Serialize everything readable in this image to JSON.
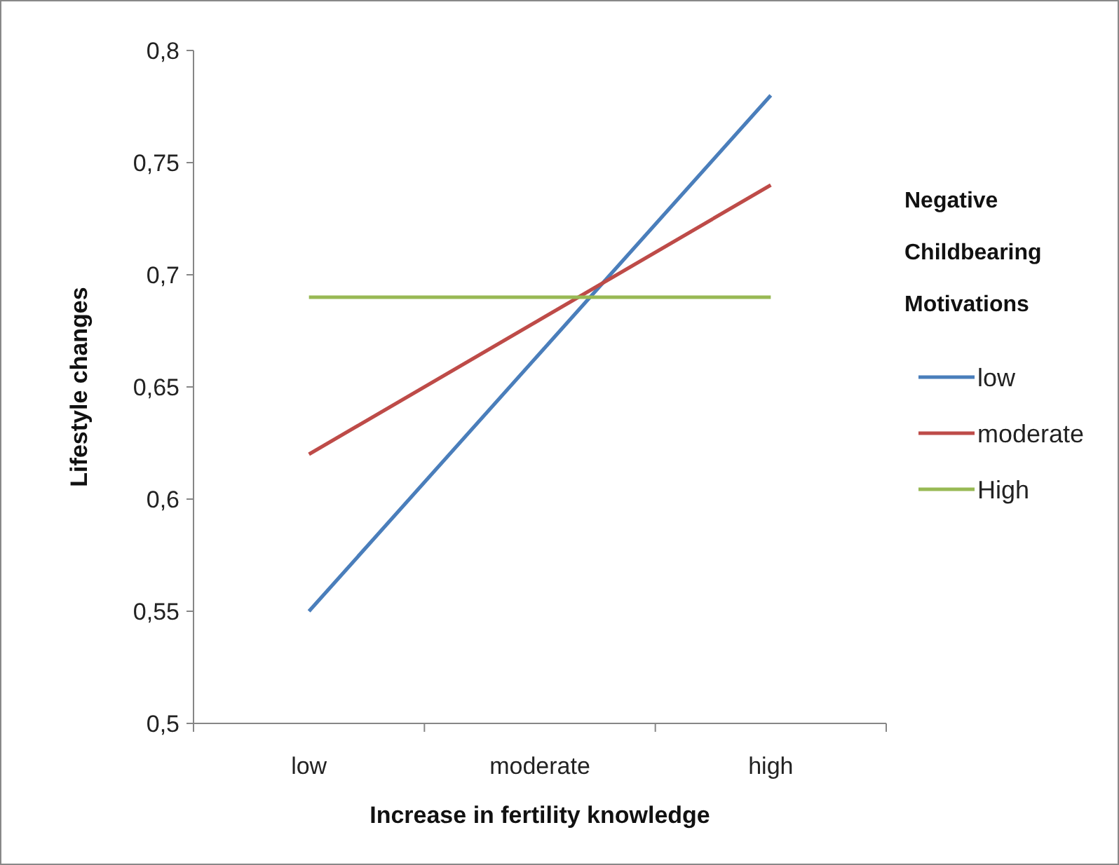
{
  "chart_data": {
    "type": "line",
    "xlabel": "Increase in fertility knowledge",
    "ylabel": "Lifestyle changes",
    "legend_title": "Negative Childbearing Motivations",
    "categories": [
      "low",
      "moderate",
      "high"
    ],
    "series": [
      {
        "name": "low",
        "color": "#4a7ebb",
        "values": [
          0.55,
          0.665,
          0.78
        ]
      },
      {
        "name": "moderate",
        "color": "#be4b48",
        "values": [
          0.62,
          0.68,
          0.74
        ]
      },
      {
        "name": "High",
        "color": "#98b954",
        "values": [
          0.69,
          0.69,
          0.69
        ]
      }
    ],
    "ylim": [
      0.5,
      0.8
    ],
    "yticks": [
      {
        "value": 0.5,
        "label": "0,5"
      },
      {
        "value": 0.55,
        "label": "0,55"
      },
      {
        "value": 0.6,
        "label": "0,6"
      },
      {
        "value": 0.65,
        "label": "0,65"
      },
      {
        "value": 0.7,
        "label": "0,7"
      },
      {
        "value": 0.75,
        "label": "0,75"
      },
      {
        "value": 0.8,
        "label": "0,8"
      }
    ],
    "grid": false,
    "legend": "right",
    "marker": "none",
    "line_style": "solid"
  }
}
